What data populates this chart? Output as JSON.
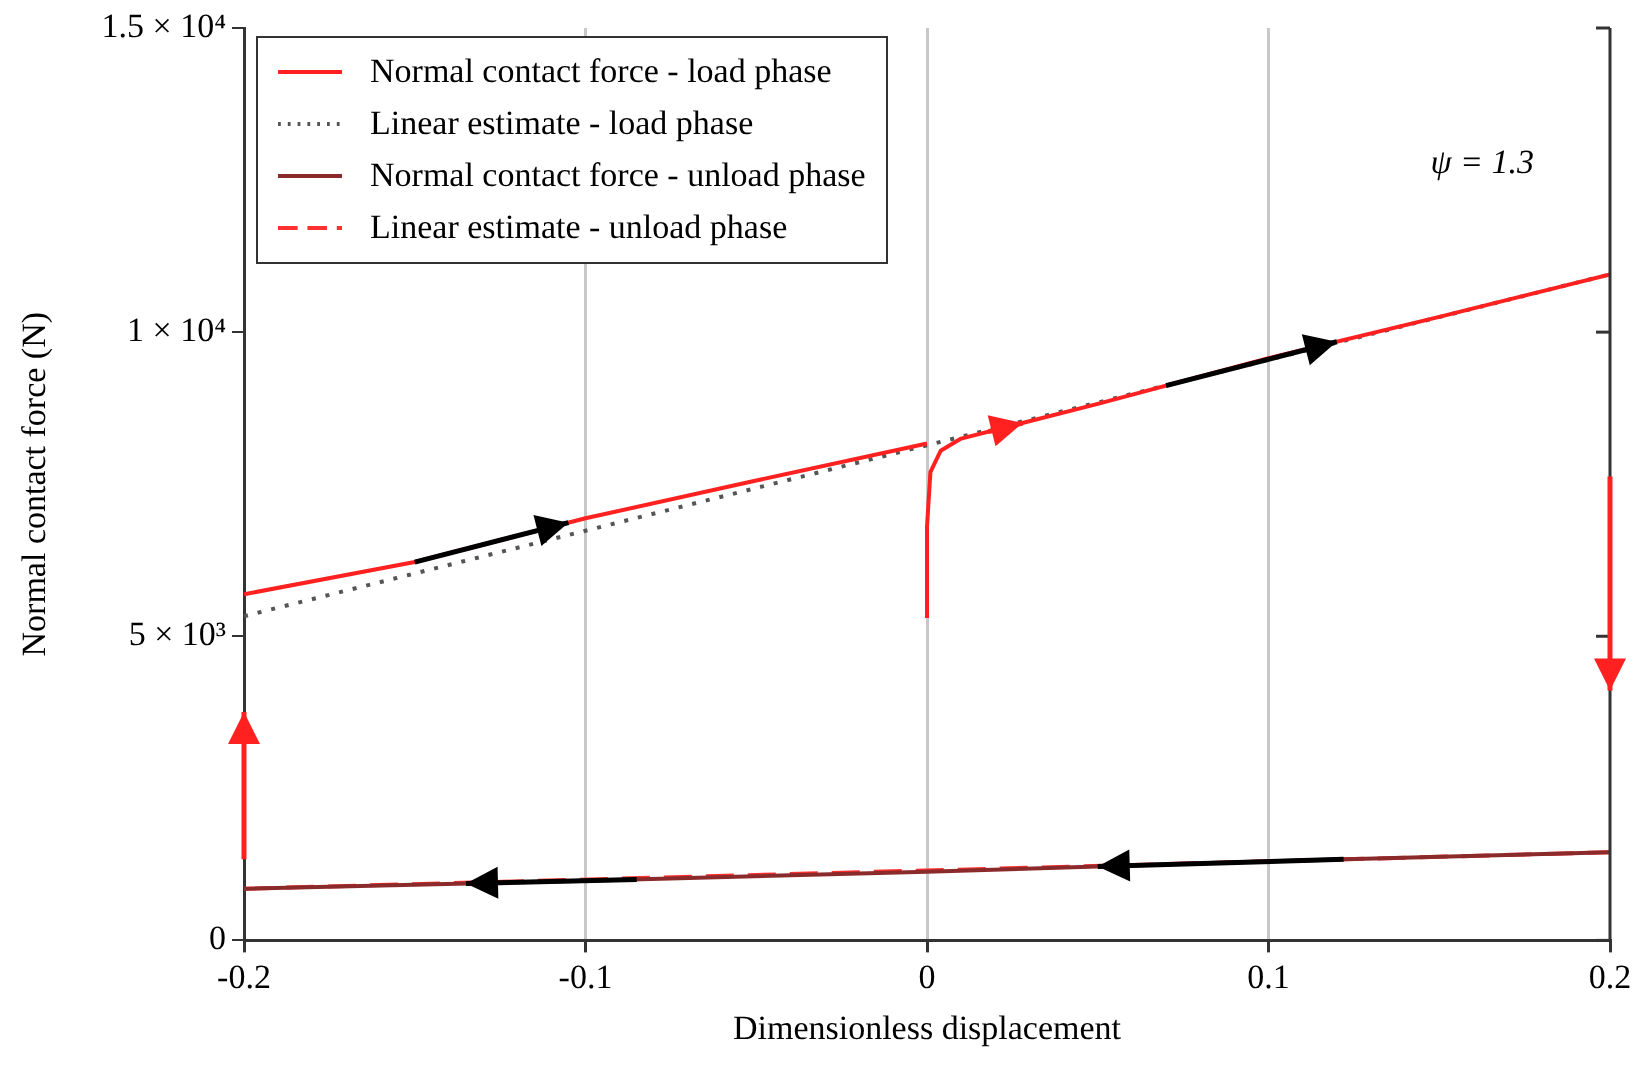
{
  "chart_data": {
    "type": "line",
    "xlabel": "Dimensionless displacement",
    "ylabel": "Normal contact force (N)",
    "xlim": [
      -0.2,
      0.2
    ],
    "xticks": [
      -0.2,
      -0.1,
      0,
      0.1,
      0.2
    ],
    "ylim": [
      0,
      15000
    ],
    "yticks": [
      {
        "value": 0,
        "label": "0"
      },
      {
        "value": 5000,
        "label": "5 × 10³"
      },
      {
        "value": 10000,
        "label": "1 × 10⁴"
      },
      {
        "value": 15000,
        "label": "1.5 × 10⁴"
      }
    ],
    "grid": "x",
    "legend": "top left",
    "marker": "none",
    "annotations": [
      "ψ = 1.3"
    ],
    "series": [
      {
        "name": "Normal contact force - load phase",
        "color": "#ff2020",
        "line_style": "solid",
        "x": [
          0,
          0,
          0.001,
          0.004,
          0.01,
          0.05,
          0.1,
          0.15,
          0.2,
          null,
          -0.2,
          -0.15,
          -0.1,
          -0.05,
          0
        ],
        "values": [
          5300,
          6800,
          7700,
          8050,
          8250,
          8820,
          9570,
          10250,
          10950,
          null,
          5690,
          6220,
          6940,
          7560,
          8170
        ]
      },
      {
        "name": "Linear estimate - load phase",
        "color": "#555555",
        "line_style": "dotted",
        "x": [
          -0.2,
          0.2
        ],
        "values": [
          5330,
          10950
        ]
      },
      {
        "name": "Normal contact force - unload phase",
        "color": "#8b2a2a",
        "line_style": "solid",
        "x": [
          0.2,
          0.1,
          0,
          -0.1,
          -0.2
        ],
        "values": [
          1450,
          1300,
          1130,
          980,
          850
        ]
      },
      {
        "name": "Linear estimate - unload phase",
        "color": "#ff3030",
        "line_style": "dashed",
        "x": [
          -0.2,
          0.2
        ],
        "values": [
          850,
          1450
        ]
      }
    ]
  }
}
